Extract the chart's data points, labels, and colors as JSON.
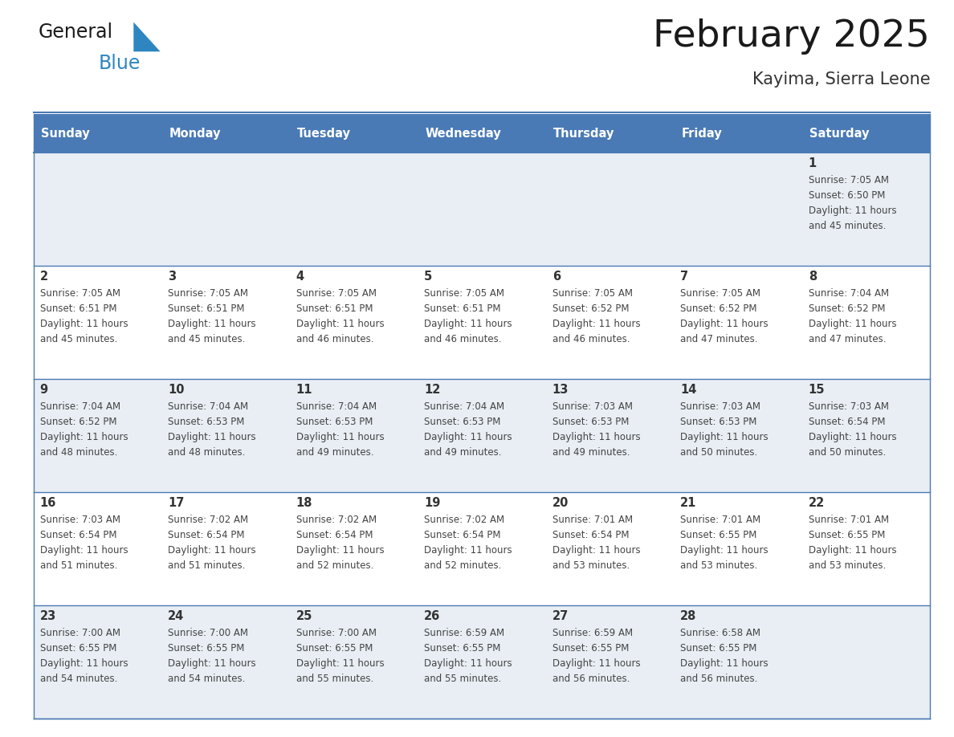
{
  "title": "February 2025",
  "subtitle": "Kayima, Sierra Leone",
  "header_bg": "#4a7ab5",
  "header_text_color": "#FFFFFF",
  "days_of_week": [
    "Sunday",
    "Monday",
    "Tuesday",
    "Wednesday",
    "Thursday",
    "Friday",
    "Saturday"
  ],
  "cell_bg_odd": "#e8eef4",
  "cell_bg_even": "#FFFFFF",
  "cell_border_color": "#4a7ab5",
  "logo_general_color": "#1a1a1a",
  "logo_blue_color": "#2E86C1",
  "logo_triangle_color": "#2E86C1",
  "title_color": "#1a1a1a",
  "subtitle_color": "#333333",
  "day_number_color": "#333333",
  "info_text_color": "#444444",
  "calendar": [
    [
      null,
      null,
      null,
      null,
      null,
      null,
      {
        "day": 1,
        "sunrise": "7:05 AM",
        "sunset": "6:50 PM",
        "daylight_line1": "Daylight: 11 hours",
        "daylight_line2": "and 45 minutes."
      }
    ],
    [
      {
        "day": 2,
        "sunrise": "7:05 AM",
        "sunset": "6:51 PM",
        "daylight_line1": "Daylight: 11 hours",
        "daylight_line2": "and 45 minutes."
      },
      {
        "day": 3,
        "sunrise": "7:05 AM",
        "sunset": "6:51 PM",
        "daylight_line1": "Daylight: 11 hours",
        "daylight_line2": "and 45 minutes."
      },
      {
        "day": 4,
        "sunrise": "7:05 AM",
        "sunset": "6:51 PM",
        "daylight_line1": "Daylight: 11 hours",
        "daylight_line2": "and 46 minutes."
      },
      {
        "day": 5,
        "sunrise": "7:05 AM",
        "sunset": "6:51 PM",
        "daylight_line1": "Daylight: 11 hours",
        "daylight_line2": "and 46 minutes."
      },
      {
        "day": 6,
        "sunrise": "7:05 AM",
        "sunset": "6:52 PM",
        "daylight_line1": "Daylight: 11 hours",
        "daylight_line2": "and 46 minutes."
      },
      {
        "day": 7,
        "sunrise": "7:05 AM",
        "sunset": "6:52 PM",
        "daylight_line1": "Daylight: 11 hours",
        "daylight_line2": "and 47 minutes."
      },
      {
        "day": 8,
        "sunrise": "7:04 AM",
        "sunset": "6:52 PM",
        "daylight_line1": "Daylight: 11 hours",
        "daylight_line2": "and 47 minutes."
      }
    ],
    [
      {
        "day": 9,
        "sunrise": "7:04 AM",
        "sunset": "6:52 PM",
        "daylight_line1": "Daylight: 11 hours",
        "daylight_line2": "and 48 minutes."
      },
      {
        "day": 10,
        "sunrise": "7:04 AM",
        "sunset": "6:53 PM",
        "daylight_line1": "Daylight: 11 hours",
        "daylight_line2": "and 48 minutes."
      },
      {
        "day": 11,
        "sunrise": "7:04 AM",
        "sunset": "6:53 PM",
        "daylight_line1": "Daylight: 11 hours",
        "daylight_line2": "and 49 minutes."
      },
      {
        "day": 12,
        "sunrise": "7:04 AM",
        "sunset": "6:53 PM",
        "daylight_line1": "Daylight: 11 hours",
        "daylight_line2": "and 49 minutes."
      },
      {
        "day": 13,
        "sunrise": "7:03 AM",
        "sunset": "6:53 PM",
        "daylight_line1": "Daylight: 11 hours",
        "daylight_line2": "and 49 minutes."
      },
      {
        "day": 14,
        "sunrise": "7:03 AM",
        "sunset": "6:53 PM",
        "daylight_line1": "Daylight: 11 hours",
        "daylight_line2": "and 50 minutes."
      },
      {
        "day": 15,
        "sunrise": "7:03 AM",
        "sunset": "6:54 PM",
        "daylight_line1": "Daylight: 11 hours",
        "daylight_line2": "and 50 minutes."
      }
    ],
    [
      {
        "day": 16,
        "sunrise": "7:03 AM",
        "sunset": "6:54 PM",
        "daylight_line1": "Daylight: 11 hours",
        "daylight_line2": "and 51 minutes."
      },
      {
        "day": 17,
        "sunrise": "7:02 AM",
        "sunset": "6:54 PM",
        "daylight_line1": "Daylight: 11 hours",
        "daylight_line2": "and 51 minutes."
      },
      {
        "day": 18,
        "sunrise": "7:02 AM",
        "sunset": "6:54 PM",
        "daylight_line1": "Daylight: 11 hours",
        "daylight_line2": "and 52 minutes."
      },
      {
        "day": 19,
        "sunrise": "7:02 AM",
        "sunset": "6:54 PM",
        "daylight_line1": "Daylight: 11 hours",
        "daylight_line2": "and 52 minutes."
      },
      {
        "day": 20,
        "sunrise": "7:01 AM",
        "sunset": "6:54 PM",
        "daylight_line1": "Daylight: 11 hours",
        "daylight_line2": "and 53 minutes."
      },
      {
        "day": 21,
        "sunrise": "7:01 AM",
        "sunset": "6:55 PM",
        "daylight_line1": "Daylight: 11 hours",
        "daylight_line2": "and 53 minutes."
      },
      {
        "day": 22,
        "sunrise": "7:01 AM",
        "sunset": "6:55 PM",
        "daylight_line1": "Daylight: 11 hours",
        "daylight_line2": "and 53 minutes."
      }
    ],
    [
      {
        "day": 23,
        "sunrise": "7:00 AM",
        "sunset": "6:55 PM",
        "daylight_line1": "Daylight: 11 hours",
        "daylight_line2": "and 54 minutes."
      },
      {
        "day": 24,
        "sunrise": "7:00 AM",
        "sunset": "6:55 PM",
        "daylight_line1": "Daylight: 11 hours",
        "daylight_line2": "and 54 minutes."
      },
      {
        "day": 25,
        "sunrise": "7:00 AM",
        "sunset": "6:55 PM",
        "daylight_line1": "Daylight: 11 hours",
        "daylight_line2": "and 55 minutes."
      },
      {
        "day": 26,
        "sunrise": "6:59 AM",
        "sunset": "6:55 PM",
        "daylight_line1": "Daylight: 11 hours",
        "daylight_line2": "and 55 minutes."
      },
      {
        "day": 27,
        "sunrise": "6:59 AM",
        "sunset": "6:55 PM",
        "daylight_line1": "Daylight: 11 hours",
        "daylight_line2": "and 56 minutes."
      },
      {
        "day": 28,
        "sunrise": "6:58 AM",
        "sunset": "6:55 PM",
        "daylight_line1": "Daylight: 11 hours",
        "daylight_line2": "and 56 minutes."
      },
      null
    ]
  ]
}
